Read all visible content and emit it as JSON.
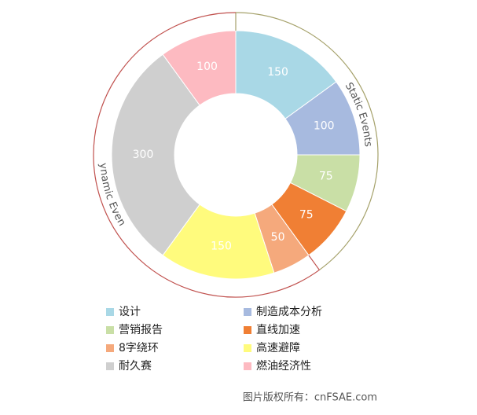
{
  "chart_data": {
    "type": "donut",
    "categories": [
      "设计",
      "制造成本分析",
      "营销报告",
      "直线加速",
      "8字绕环",
      "高速避障",
      "耐久赛",
      "燃油经济性"
    ],
    "values": [
      150,
      100,
      75,
      75,
      50,
      150,
      300,
      100
    ],
    "colors": [
      "#a9d8e6",
      "#a7badf",
      "#c9dfa6",
      "#f07f34",
      "#f5a97c",
      "#fffb7d",
      "#cfcfcf",
      "#fdbac1"
    ],
    "groups": [
      {
        "name": "Static Events",
        "color": "#a5a16a",
        "categories": [
          "设计",
          "制造成本分析",
          "营销报告",
          "直线加速"
        ]
      },
      {
        "name": "Dynamic Events",
        "color": "#c0504d",
        "categories": [
          "8字绕环",
          "高速避障",
          "耐久赛",
          "燃油经济性"
        ]
      }
    ],
    "legend": "bottom",
    "caption": "图片版权所有：cnFSAE.com"
  }
}
